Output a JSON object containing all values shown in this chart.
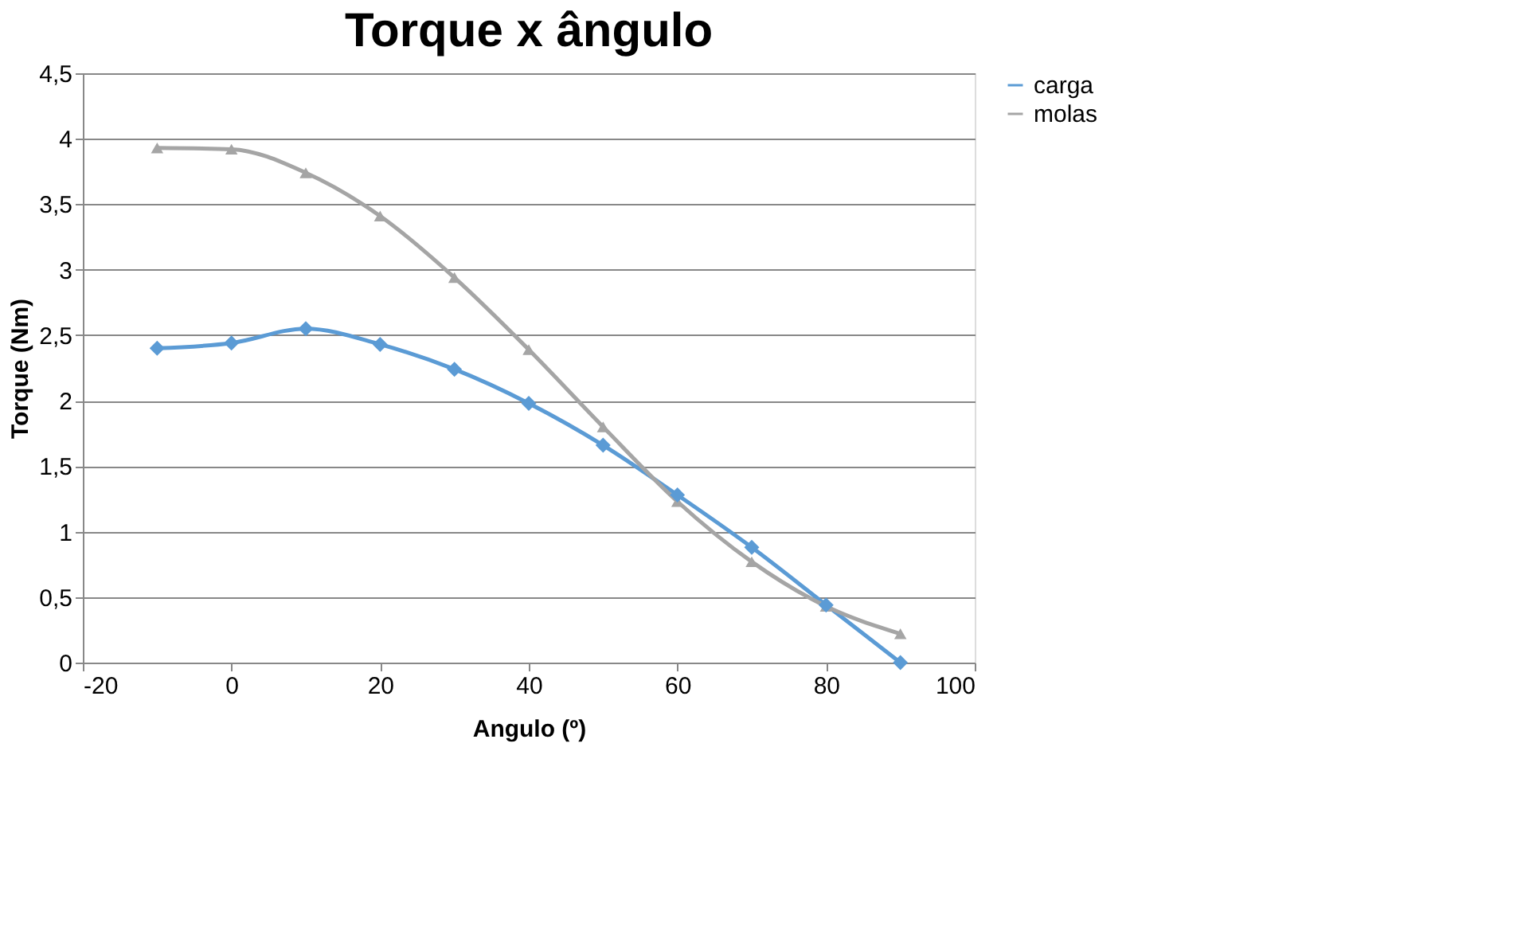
{
  "chart_data": {
    "type": "line",
    "title": "Torque x ângulo",
    "xlabel": "Angulo (º)",
    "ylabel": "Torque (Nm)",
    "x": [
      -10,
      0,
      10,
      20,
      30,
      40,
      50,
      60,
      70,
      80,
      90
    ],
    "series": [
      {
        "name": "carga",
        "color": "#5b9bd5",
        "marker": "diamond",
        "line_style": "solid",
        "values": [
          2.4,
          2.44,
          2.55,
          2.43,
          2.24,
          1.98,
          1.66,
          1.28,
          0.88,
          0.44,
          0
        ]
      },
      {
        "name": "molas",
        "color": "#a5a5a5",
        "marker": "triangle",
        "line_style": "solid",
        "values": [
          3.93,
          3.92,
          3.74,
          3.41,
          2.94,
          2.39,
          1.8,
          1.23,
          0.77,
          0.43,
          0.22
        ]
      }
    ],
    "xlim": [
      -20,
      100
    ],
    "xticks": [
      -20,
      0,
      20,
      40,
      60,
      80,
      100
    ],
    "ylim": [
      0,
      4.5
    ],
    "yticks": [
      0,
      {
        "value": 0.5,
        "label": "0,5"
      },
      1,
      {
        "value": 1.5,
        "label": "1,5"
      },
      2,
      {
        "value": 2.5,
        "label": "2,5"
      },
      3,
      {
        "value": 3.5,
        "label": "3,5"
      },
      4,
      {
        "value": 4.5,
        "label": "4,5"
      }
    ],
    "grid": "y",
    "legend": "right"
  }
}
